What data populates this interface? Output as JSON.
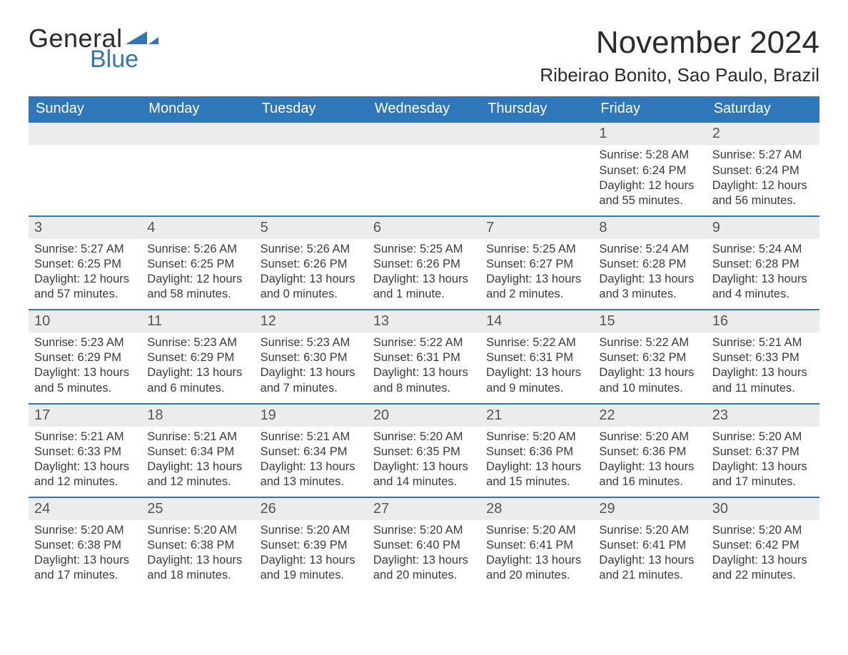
{
  "brand": {
    "word1": "General",
    "word2": "Blue",
    "accent_color": "#2f77bb"
  },
  "title": "November 2024",
  "location": "Ribeirao Bonito, Sao Paulo, Brazil",
  "colors": {
    "header_bg": "#2f77bb",
    "header_text": "#ffffff",
    "day_num_bg": "#ececec",
    "week_divider": "#2f77bb",
    "body_text": "#3a3a3a",
    "title_text": "#2b2b2b"
  },
  "typography": {
    "title_fontsize": 44,
    "location_fontsize": 26,
    "dow_fontsize": 20,
    "daynum_fontsize": 20,
    "body_fontsize": 16.5
  },
  "days_of_week": [
    "Sunday",
    "Monday",
    "Tuesday",
    "Wednesday",
    "Thursday",
    "Friday",
    "Saturday"
  ],
  "weeks": [
    [
      {
        "n": "",
        "empty": true
      },
      {
        "n": "",
        "empty": true
      },
      {
        "n": "",
        "empty": true
      },
      {
        "n": "",
        "empty": true
      },
      {
        "n": "",
        "empty": true
      },
      {
        "n": "1",
        "sunrise": "Sunrise: 5:28 AM",
        "sunset": "Sunset: 6:24 PM",
        "daylight": "Daylight: 12 hours and 55 minutes."
      },
      {
        "n": "2",
        "sunrise": "Sunrise: 5:27 AM",
        "sunset": "Sunset: 6:24 PM",
        "daylight": "Daylight: 12 hours and 56 minutes."
      }
    ],
    [
      {
        "n": "3",
        "sunrise": "Sunrise: 5:27 AM",
        "sunset": "Sunset: 6:25 PM",
        "daylight": "Daylight: 12 hours and 57 minutes."
      },
      {
        "n": "4",
        "sunrise": "Sunrise: 5:26 AM",
        "sunset": "Sunset: 6:25 PM",
        "daylight": "Daylight: 12 hours and 58 minutes."
      },
      {
        "n": "5",
        "sunrise": "Sunrise: 5:26 AM",
        "sunset": "Sunset: 6:26 PM",
        "daylight": "Daylight: 13 hours and 0 minutes."
      },
      {
        "n": "6",
        "sunrise": "Sunrise: 5:25 AM",
        "sunset": "Sunset: 6:26 PM",
        "daylight": "Daylight: 13 hours and 1 minute."
      },
      {
        "n": "7",
        "sunrise": "Sunrise: 5:25 AM",
        "sunset": "Sunset: 6:27 PM",
        "daylight": "Daylight: 13 hours and 2 minutes."
      },
      {
        "n": "8",
        "sunrise": "Sunrise: 5:24 AM",
        "sunset": "Sunset: 6:28 PM",
        "daylight": "Daylight: 13 hours and 3 minutes."
      },
      {
        "n": "9",
        "sunrise": "Sunrise: 5:24 AM",
        "sunset": "Sunset: 6:28 PM",
        "daylight": "Daylight: 13 hours and 4 minutes."
      }
    ],
    [
      {
        "n": "10",
        "sunrise": "Sunrise: 5:23 AM",
        "sunset": "Sunset: 6:29 PM",
        "daylight": "Daylight: 13 hours and 5 minutes."
      },
      {
        "n": "11",
        "sunrise": "Sunrise: 5:23 AM",
        "sunset": "Sunset: 6:29 PM",
        "daylight": "Daylight: 13 hours and 6 minutes."
      },
      {
        "n": "12",
        "sunrise": "Sunrise: 5:23 AM",
        "sunset": "Sunset: 6:30 PM",
        "daylight": "Daylight: 13 hours and 7 minutes."
      },
      {
        "n": "13",
        "sunrise": "Sunrise: 5:22 AM",
        "sunset": "Sunset: 6:31 PM",
        "daylight": "Daylight: 13 hours and 8 minutes."
      },
      {
        "n": "14",
        "sunrise": "Sunrise: 5:22 AM",
        "sunset": "Sunset: 6:31 PM",
        "daylight": "Daylight: 13 hours and 9 minutes."
      },
      {
        "n": "15",
        "sunrise": "Sunrise: 5:22 AM",
        "sunset": "Sunset: 6:32 PM",
        "daylight": "Daylight: 13 hours and 10 minutes."
      },
      {
        "n": "16",
        "sunrise": "Sunrise: 5:21 AM",
        "sunset": "Sunset: 6:33 PM",
        "daylight": "Daylight: 13 hours and 11 minutes."
      }
    ],
    [
      {
        "n": "17",
        "sunrise": "Sunrise: 5:21 AM",
        "sunset": "Sunset: 6:33 PM",
        "daylight": "Daylight: 13 hours and 12 minutes."
      },
      {
        "n": "18",
        "sunrise": "Sunrise: 5:21 AM",
        "sunset": "Sunset: 6:34 PM",
        "daylight": "Daylight: 13 hours and 12 minutes."
      },
      {
        "n": "19",
        "sunrise": "Sunrise: 5:21 AM",
        "sunset": "Sunset: 6:34 PM",
        "daylight": "Daylight: 13 hours and 13 minutes."
      },
      {
        "n": "20",
        "sunrise": "Sunrise: 5:20 AM",
        "sunset": "Sunset: 6:35 PM",
        "daylight": "Daylight: 13 hours and 14 minutes."
      },
      {
        "n": "21",
        "sunrise": "Sunrise: 5:20 AM",
        "sunset": "Sunset: 6:36 PM",
        "daylight": "Daylight: 13 hours and 15 minutes."
      },
      {
        "n": "22",
        "sunrise": "Sunrise: 5:20 AM",
        "sunset": "Sunset: 6:36 PM",
        "daylight": "Daylight: 13 hours and 16 minutes."
      },
      {
        "n": "23",
        "sunrise": "Sunrise: 5:20 AM",
        "sunset": "Sunset: 6:37 PM",
        "daylight": "Daylight: 13 hours and 17 minutes."
      }
    ],
    [
      {
        "n": "24",
        "sunrise": "Sunrise: 5:20 AM",
        "sunset": "Sunset: 6:38 PM",
        "daylight": "Daylight: 13 hours and 17 minutes."
      },
      {
        "n": "25",
        "sunrise": "Sunrise: 5:20 AM",
        "sunset": "Sunset: 6:38 PM",
        "daylight": "Daylight: 13 hours and 18 minutes."
      },
      {
        "n": "26",
        "sunrise": "Sunrise: 5:20 AM",
        "sunset": "Sunset: 6:39 PM",
        "daylight": "Daylight: 13 hours and 19 minutes."
      },
      {
        "n": "27",
        "sunrise": "Sunrise: 5:20 AM",
        "sunset": "Sunset: 6:40 PM",
        "daylight": "Daylight: 13 hours and 20 minutes."
      },
      {
        "n": "28",
        "sunrise": "Sunrise: 5:20 AM",
        "sunset": "Sunset: 6:41 PM",
        "daylight": "Daylight: 13 hours and 20 minutes."
      },
      {
        "n": "29",
        "sunrise": "Sunrise: 5:20 AM",
        "sunset": "Sunset: 6:41 PM",
        "daylight": "Daylight: 13 hours and 21 minutes."
      },
      {
        "n": "30",
        "sunrise": "Sunrise: 5:20 AM",
        "sunset": "Sunset: 6:42 PM",
        "daylight": "Daylight: 13 hours and 22 minutes."
      }
    ]
  ]
}
